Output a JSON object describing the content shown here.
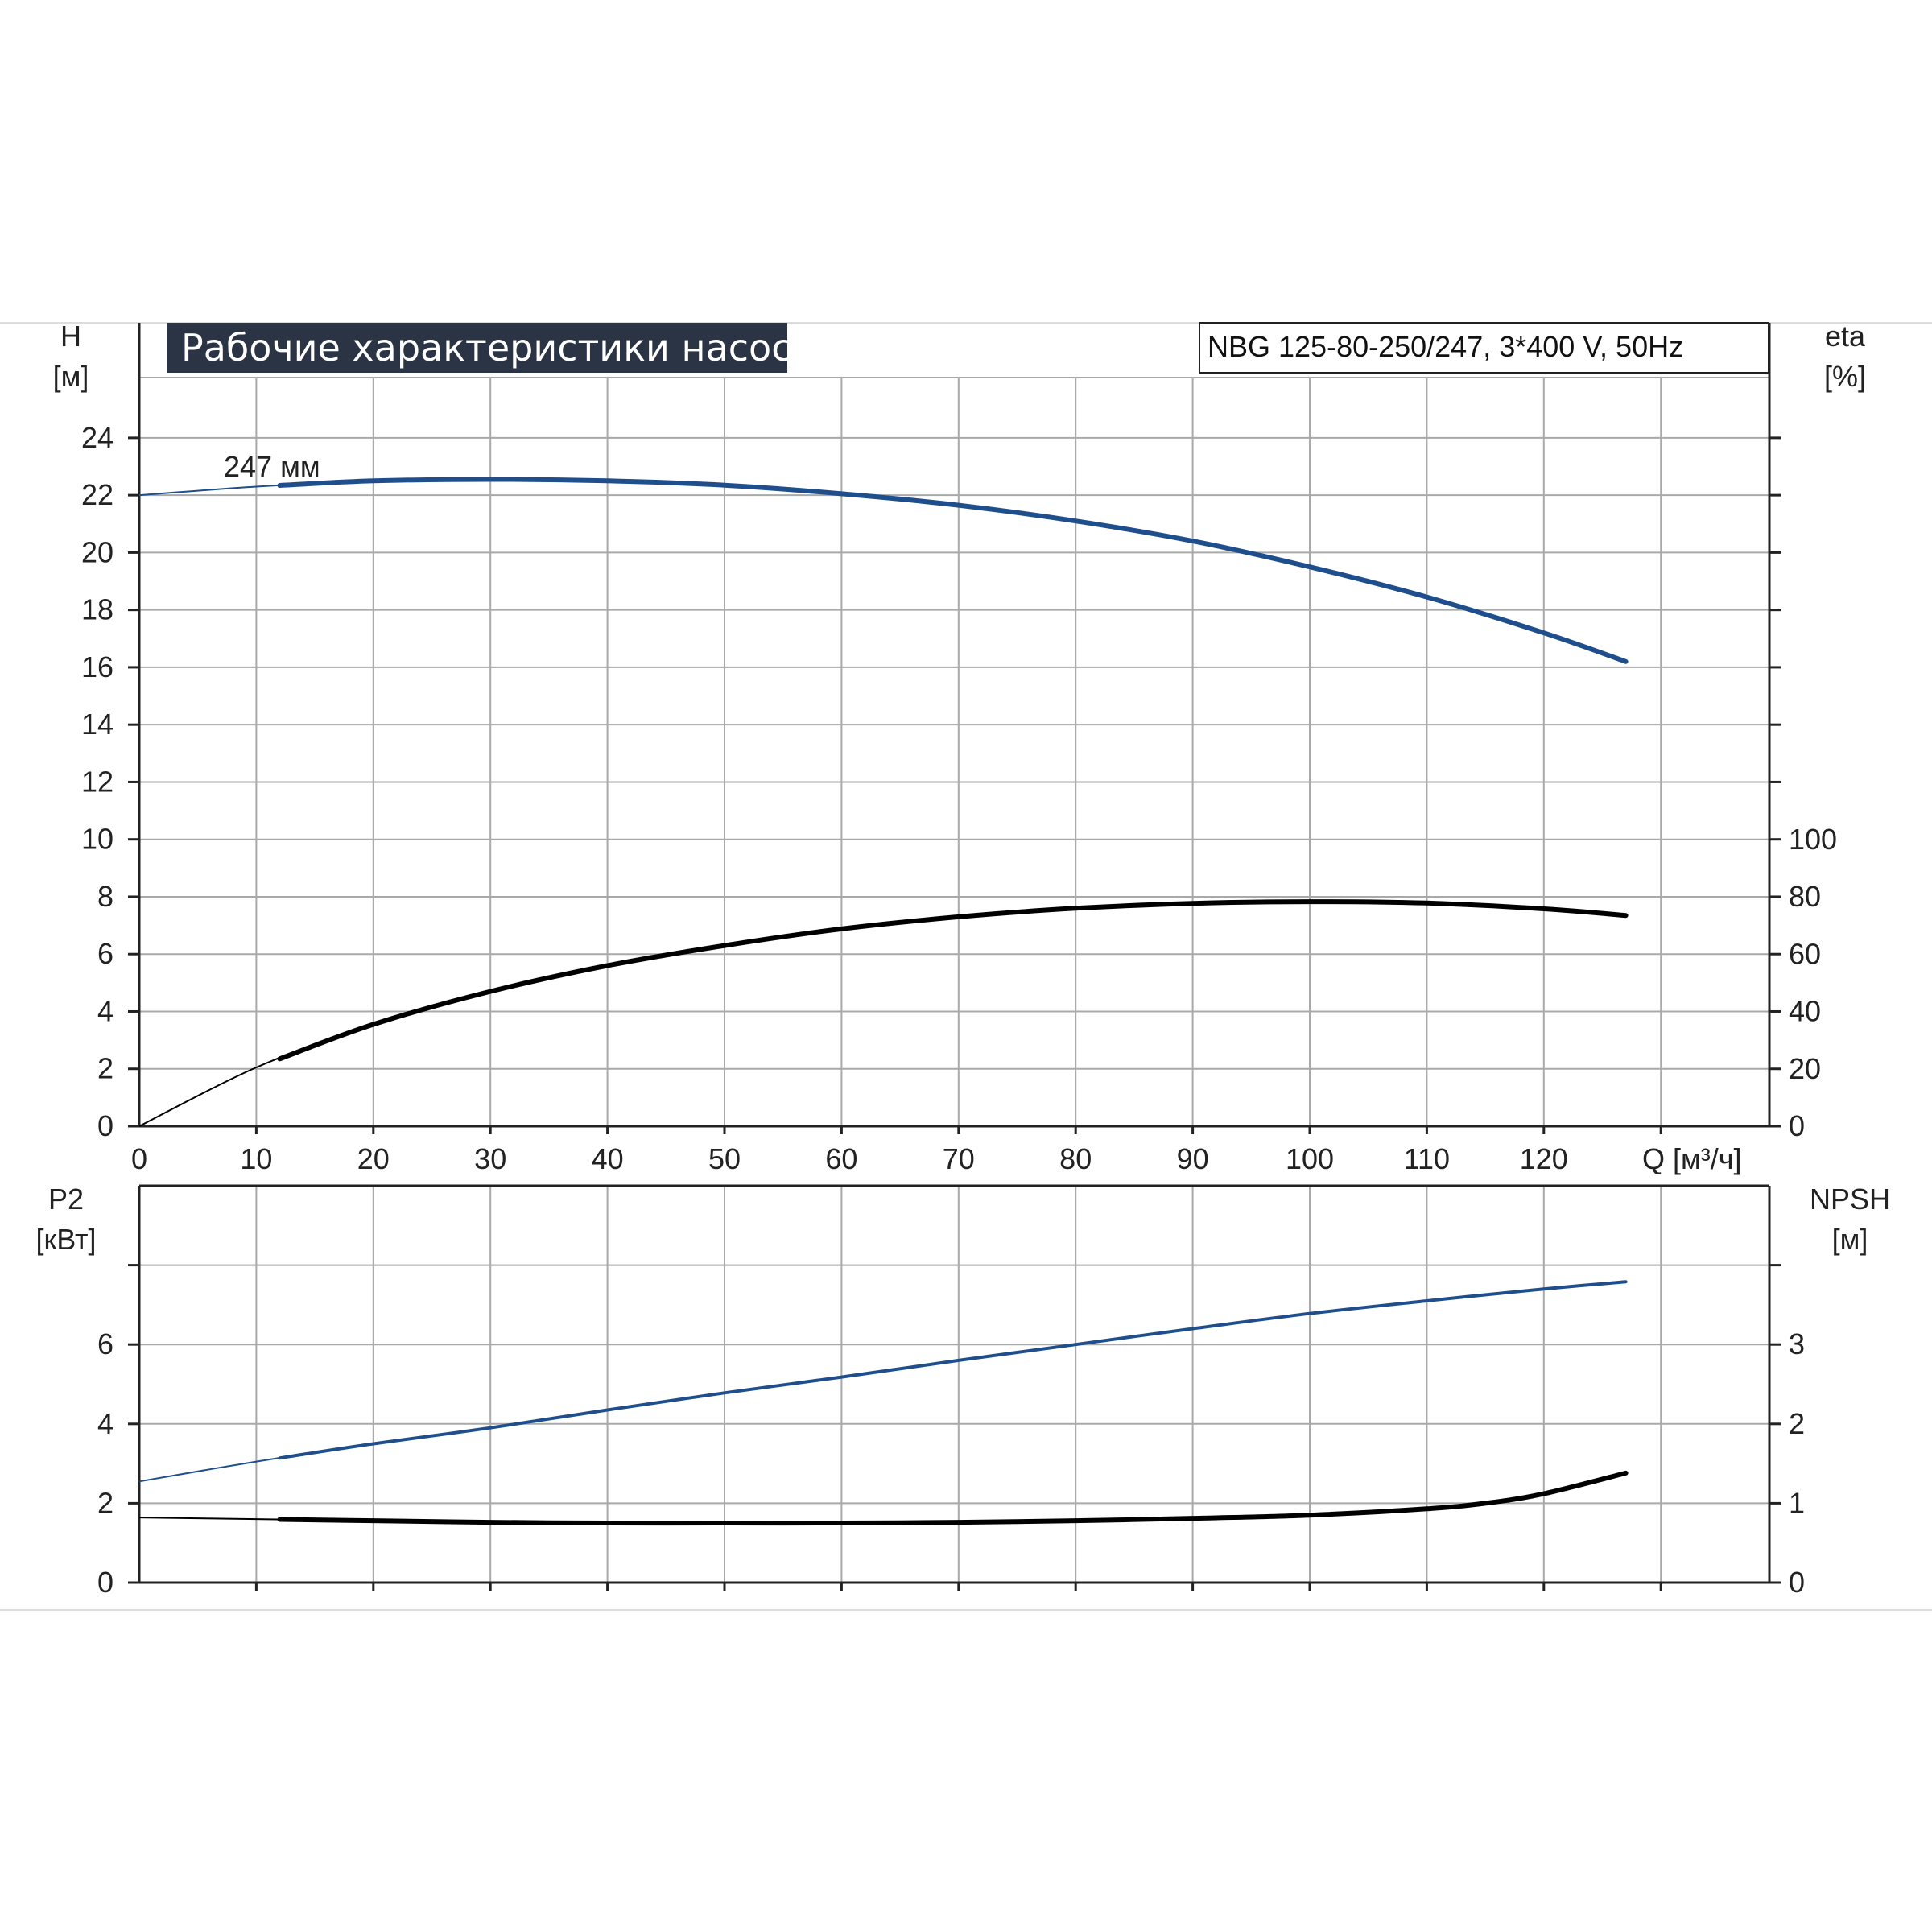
{
  "chart_data": [
    {
      "type": "line",
      "title": "Рабочие характеристики насоса",
      "subtitle": "NBG 125-80-250/247, 3*400 V, 50Hz",
      "x_ticks": [
        "0",
        "10",
        "20",
        "30",
        "40",
        "50",
        "60",
        "70",
        "80",
        "90",
        "100",
        "110",
        "120"
      ],
      "x_label": "Q [м³/ч]",
      "xlim": [
        0,
        140
      ],
      "left_axis": {
        "label": "H",
        "unit": "[м]",
        "ylim": [
          0,
          26
        ],
        "ticks": [
          "0",
          "2",
          "4",
          "6",
          "8",
          "10",
          "12",
          "14",
          "16",
          "18",
          "20",
          "22",
          "24"
        ]
      },
      "right_axis": {
        "label": "eta",
        "unit": "[%]",
        "ylim": [
          0,
          100
        ],
        "ticks": [
          "0",
          "20",
          "40",
          "60",
          "80",
          "100"
        ]
      },
      "annotation": "247 мм",
      "grid": true,
      "series": [
        {
          "axis": "left",
          "color": "#1f4e8c",
          "x": [
            0,
            10,
            20,
            30,
            40,
            50,
            60,
            70,
            80,
            90,
            100,
            110,
            120,
            127
          ],
          "y": [
            22.0,
            22.3,
            22.5,
            22.55,
            22.5,
            22.35,
            22.05,
            21.65,
            21.1,
            20.4,
            19.5,
            18.45,
            17.2,
            16.2
          ]
        },
        {
          "axis": "right",
          "color": "#000000",
          "x": [
            0,
            10,
            20,
            30,
            40,
            50,
            60,
            70,
            80,
            90,
            100,
            110,
            120,
            127
          ],
          "y": [
            0,
            20.5,
            35.5,
            47,
            56,
            63,
            68.8,
            73,
            76,
            77.7,
            78.3,
            77.8,
            75.8,
            73.5
          ]
        }
      ]
    },
    {
      "type": "line",
      "x_ticks": [
        "0",
        "10",
        "20",
        "30",
        "40",
        "50",
        "60",
        "70",
        "80",
        "90",
        "100",
        "110",
        "120"
      ],
      "xlim": [
        0,
        140
      ],
      "left_axis": {
        "label": "P2",
        "unit": "[кВт]",
        "ylim": [
          0,
          8
        ],
        "ticks": [
          "0",
          "2",
          "4",
          "6"
        ]
      },
      "right_axis": {
        "label": "NPSH",
        "unit": "[м]",
        "ylim": [
          0,
          4
        ],
        "ticks": [
          "0",
          "1",
          "2",
          "3"
        ]
      },
      "grid": true,
      "series": [
        {
          "axis": "left",
          "color": "#1f4e8c",
          "x": [
            0,
            10,
            20,
            30,
            40,
            50,
            60,
            70,
            80,
            90,
            100,
            110,
            120,
            127
          ],
          "y": [
            2.55,
            3.05,
            3.5,
            3.9,
            4.35,
            4.78,
            5.18,
            5.6,
            6.0,
            6.4,
            6.78,
            7.1,
            7.4,
            7.58
          ]
        },
        {
          "axis": "right",
          "color": "#000000",
          "x": [
            0,
            10,
            20,
            30,
            40,
            50,
            60,
            70,
            80,
            90,
            100,
            110,
            115,
            120,
            127
          ],
          "y": [
            0.82,
            0.8,
            0.78,
            0.76,
            0.75,
            0.75,
            0.75,
            0.76,
            0.78,
            0.81,
            0.85,
            0.93,
            1.0,
            1.12,
            1.38
          ]
        }
      ]
    }
  ]
}
